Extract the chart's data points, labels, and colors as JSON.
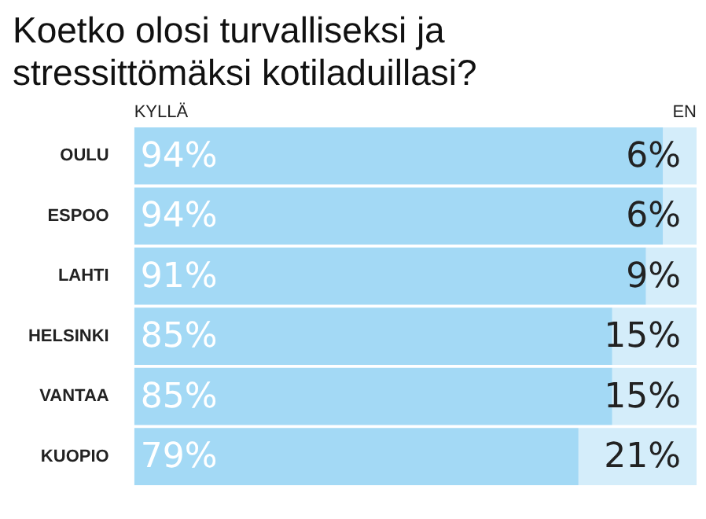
{
  "chart_data": {
    "type": "bar",
    "orientation": "horizontal",
    "stacked": true,
    "title": "Koetko olosi turvalliseksi ja stressittömäksi kotiladuillasi?",
    "categories": [
      "OULU",
      "ESPOO",
      "LAHTI",
      "HELSINKI",
      "VANTAA",
      "KUOPIO"
    ],
    "series": [
      {
        "name": "KYLLÄ",
        "color": "#a3d9f5",
        "values": [
          94,
          94,
          91,
          85,
          85,
          79
        ],
        "value_labels": [
          "94%",
          "94%",
          "91%",
          "85%",
          "85%",
          "79%"
        ]
      },
      {
        "name": "EN",
        "color": "#d4edfa",
        "values": [
          6,
          6,
          9,
          15,
          15,
          21
        ],
        "value_labels": [
          "6%",
          "6%",
          "9%",
          "15%",
          "15%",
          "21%"
        ]
      }
    ],
    "tick_labels": "y"
  }
}
